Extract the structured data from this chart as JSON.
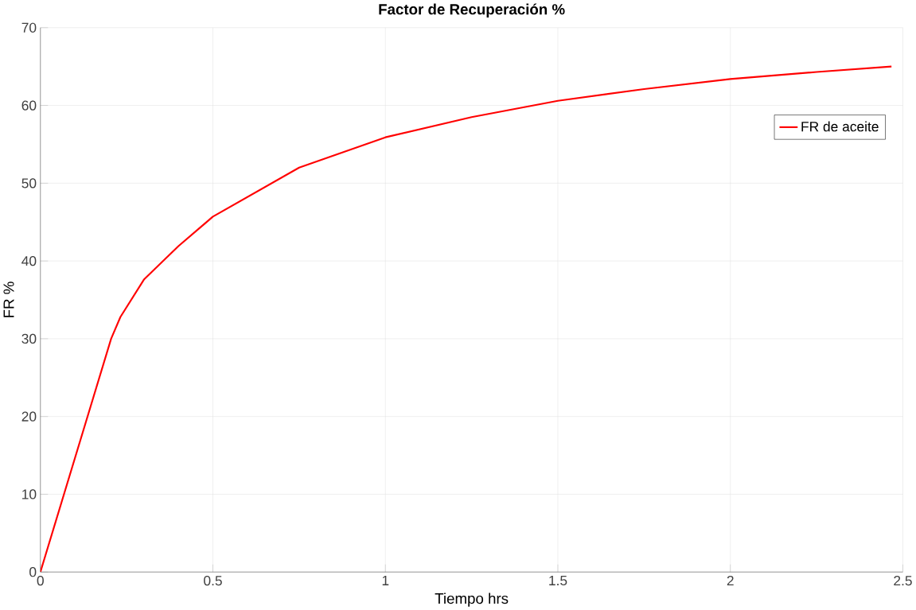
{
  "chart_data": {
    "type": "line",
    "title": "Factor de Recuperación %",
    "xlabel": "Tiempo hrs",
    "ylabel": "FR %",
    "xlim": [
      0,
      2.5
    ],
    "ylim": [
      0,
      70
    ],
    "xticks": [
      0,
      0.5,
      1,
      1.5,
      2,
      2.5
    ],
    "yticks": [
      0,
      10,
      20,
      30,
      40,
      50,
      60,
      70
    ],
    "grid": true,
    "legend": "top right",
    "line_style": "solid",
    "marker": "none",
    "series": [
      {
        "name": "FR de aceite",
        "color": "#ff0000",
        "x": [
          0,
          0.205,
          0.232,
          0.3,
          0.4,
          0.5,
          0.75,
          1,
          1.25,
          1.5,
          1.75,
          2,
          2.25,
          2.467
        ],
        "values": [
          0,
          30,
          32.8,
          37.6,
          41.9,
          45.7,
          52.0,
          55.9,
          58.5,
          60.6,
          62.1,
          63.4,
          64.3,
          65.0
        ]
      }
    ]
  }
}
